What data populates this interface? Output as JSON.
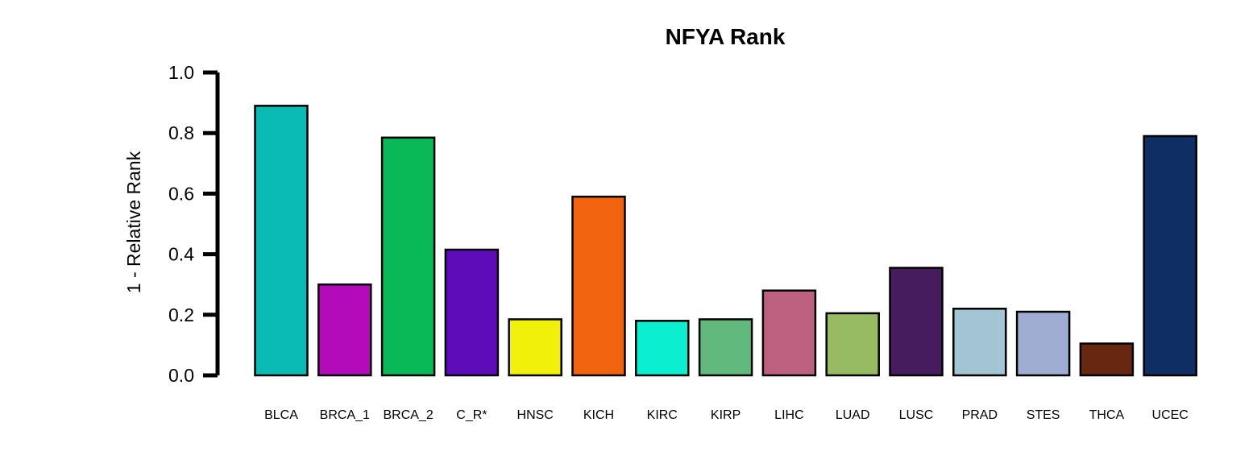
{
  "chart_data": {
    "type": "bar",
    "title": "NFYA Rank",
    "xlabel": "",
    "ylabel": "1 - Relative Rank",
    "ylim": [
      0,
      1.0
    ],
    "yticks": [
      "0.0",
      "0.2",
      "0.4",
      "0.6",
      "0.8",
      "1.0"
    ],
    "categories": [
      "BLCA",
      "BRCA_1",
      "BRCA_2",
      "C_R*",
      "HNSC",
      "KICH",
      "KIRC",
      "KIRP",
      "LIHC",
      "LUAD",
      "LUSC",
      "PRAD",
      "STES",
      "THCA",
      "UCEC"
    ],
    "values": [
      0.89,
      0.3,
      0.785,
      0.415,
      0.185,
      0.59,
      0.18,
      0.185,
      0.28,
      0.205,
      0.355,
      0.22,
      0.21,
      0.105,
      0.79
    ],
    "colors": [
      "#0ABAB5",
      "#B30BB9",
      "#09B856",
      "#5E0BB9",
      "#F0F00A",
      "#F26310",
      "#0CEED0",
      "#62B97E",
      "#BE6180",
      "#97BB62",
      "#461C5E",
      "#A3C5D3",
      "#A0ADD2",
      "#682711",
      "#0F2F64"
    ],
    "grid": false,
    "legend": "none"
  }
}
